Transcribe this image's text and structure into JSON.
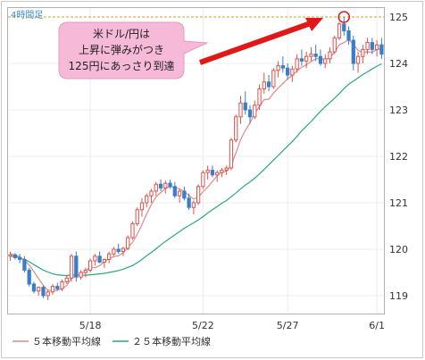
{
  "chart_data": {
    "type": "candlestick",
    "period_label": "4時間足",
    "y_ticks": [
      "125",
      "124",
      "123",
      "122",
      "121",
      "120",
      "119"
    ],
    "ylim": [
      118.5,
      125.3
    ],
    "x_ticks": [
      "5/18",
      "5/22",
      "5/27",
      "6/1"
    ],
    "resistance_level": 125,
    "annotation": [
      "米ドル/円は",
      "上昇に弾みがつき",
      "125円にあっさり到達"
    ],
    "colors": {
      "up": "#d9544d",
      "down": "#3a7dc9",
      "ma5": "#e08a8a",
      "ma25": "#2ca87a",
      "resistance": "#d49a28",
      "annotation_fill": "#f6b9d8",
      "arrow": "#e01818"
    },
    "legend": [
      {
        "label": "５本移動平均線",
        "color": "#e08a8a"
      },
      {
        "label": "２５本移動平均線",
        "color": "#2ca87a"
      }
    ],
    "candles": [
      [
        119.85,
        119.95,
        119.75,
        119.88
      ],
      [
        119.88,
        119.92,
        119.78,
        119.82
      ],
      [
        119.82,
        119.9,
        119.7,
        119.78
      ],
      [
        119.78,
        119.85,
        119.5,
        119.55
      ],
      [
        119.55,
        119.6,
        119.2,
        119.25
      ],
      [
        119.25,
        119.3,
        119.05,
        119.1
      ],
      [
        119.1,
        119.2,
        119.0,
        119.18
      ],
      [
        119.18,
        119.22,
        118.95,
        119.0
      ],
      [
        119.0,
        119.12,
        118.9,
        119.08
      ],
      [
        119.08,
        119.25,
        119.02,
        119.2
      ],
      [
        119.2,
        119.28,
        119.1,
        119.15
      ],
      [
        119.15,
        119.35,
        119.1,
        119.3
      ],
      [
        119.3,
        119.45,
        119.25,
        119.38
      ],
      [
        119.38,
        119.9,
        119.3,
        119.85
      ],
      [
        119.85,
        119.95,
        119.3,
        119.4
      ],
      [
        119.4,
        119.55,
        119.35,
        119.5
      ],
      [
        119.5,
        119.6,
        119.4,
        119.55
      ],
      [
        119.55,
        119.8,
        119.5,
        119.75
      ],
      [
        119.75,
        119.9,
        119.65,
        119.85
      ],
      [
        119.85,
        119.95,
        119.7,
        119.72
      ],
      [
        119.72,
        119.8,
        119.6,
        119.78
      ],
      [
        119.78,
        119.95,
        119.7,
        119.9
      ],
      [
        119.9,
        120.05,
        119.85,
        120.0
      ],
      [
        120.0,
        120.12,
        119.9,
        119.95
      ],
      [
        119.95,
        120.05,
        119.85,
        120.02
      ],
      [
        120.02,
        120.3,
        119.98,
        120.25
      ],
      [
        120.25,
        120.6,
        120.2,
        120.55
      ],
      [
        120.55,
        120.9,
        120.5,
        120.85
      ],
      [
        120.85,
        121.1,
        120.7,
        121.0
      ],
      [
        121.0,
        121.2,
        120.9,
        121.15
      ],
      [
        121.15,
        121.3,
        121.0,
        121.25
      ],
      [
        121.25,
        121.45,
        121.15,
        121.4
      ],
      [
        121.4,
        121.5,
        121.25,
        121.32
      ],
      [
        121.32,
        121.48,
        121.2,
        121.42
      ],
      [
        121.42,
        121.5,
        121.3,
        121.35
      ],
      [
        121.35,
        121.45,
        121.1,
        121.15
      ],
      [
        121.15,
        121.3,
        121.0,
        121.25
      ],
      [
        121.25,
        121.35,
        121.05,
        121.1
      ],
      [
        121.1,
        121.2,
        120.85,
        120.9
      ],
      [
        120.9,
        121.05,
        120.75,
        121.0
      ],
      [
        121.0,
        121.4,
        120.95,
        121.35
      ],
      [
        121.35,
        121.7,
        121.3,
        121.65
      ],
      [
        121.65,
        121.8,
        121.5,
        121.7
      ],
      [
        121.7,
        121.8,
        121.55,
        121.6
      ],
      [
        121.6,
        121.7,
        121.45,
        121.65
      ],
      [
        121.65,
        121.75,
        121.55,
        121.7
      ],
      [
        121.7,
        121.8,
        121.6,
        121.75
      ],
      [
        121.75,
        122.4,
        121.7,
        122.35
      ],
      [
        122.35,
        122.9,
        122.3,
        122.85
      ],
      [
        122.85,
        123.3,
        122.7,
        123.15
      ],
      [
        123.15,
        123.4,
        122.9,
        123.0
      ],
      [
        123.0,
        123.1,
        122.7,
        122.85
      ],
      [
        122.85,
        123.2,
        122.8,
        123.1
      ],
      [
        123.1,
        123.55,
        123.0,
        123.45
      ],
      [
        123.45,
        123.8,
        123.35,
        123.6
      ],
      [
        123.6,
        123.75,
        123.4,
        123.5
      ],
      [
        123.5,
        123.9,
        123.45,
        123.85
      ],
      [
        123.85,
        124.05,
        123.7,
        123.95
      ],
      [
        123.95,
        124.15,
        123.8,
        123.9
      ],
      [
        123.9,
        124.0,
        123.65,
        123.75
      ],
      [
        123.75,
        123.95,
        123.6,
        123.88
      ],
      [
        123.88,
        124.2,
        123.8,
        124.1
      ],
      [
        124.1,
        124.3,
        123.95,
        124.05
      ],
      [
        124.05,
        124.25,
        123.9,
        124.15
      ],
      [
        124.15,
        124.35,
        124.05,
        124.2
      ],
      [
        124.2,
        124.4,
        124.05,
        124.15
      ],
      [
        124.15,
        124.3,
        123.95,
        124.0
      ],
      [
        124.0,
        124.2,
        123.9,
        124.1
      ],
      [
        124.1,
        124.35,
        124.0,
        124.25
      ],
      [
        124.25,
        124.6,
        124.2,
        124.55
      ],
      [
        124.55,
        124.9,
        124.5,
        124.85
      ],
      [
        124.85,
        125.0,
        124.6,
        124.7
      ],
      [
        124.7,
        124.8,
        124.4,
        124.5
      ],
      [
        124.5,
        124.6,
        123.85,
        124.0
      ],
      [
        124.0,
        124.25,
        123.8,
        124.15
      ],
      [
        124.15,
        124.4,
        124.0,
        124.3
      ],
      [
        124.3,
        124.55,
        124.2,
        124.45
      ],
      [
        124.45,
        124.55,
        124.2,
        124.3
      ],
      [
        124.3,
        124.5,
        124.15,
        124.4
      ],
      [
        124.4,
        124.55,
        124.1,
        124.2
      ]
    ],
    "ma5": [
      119.9,
      119.87,
      119.84,
      119.76,
      119.66,
      119.52,
      119.37,
      119.22,
      119.12,
      119.11,
      119.12,
      119.15,
      119.22,
      119.38,
      119.42,
      119.47,
      119.54,
      119.61,
      119.6,
      119.65,
      119.73,
      119.8,
      119.84,
      119.86,
      119.92,
      120.04,
      120.15,
      120.32,
      120.53,
      120.76,
      120.96,
      121.13,
      121.22,
      121.31,
      121.35,
      121.33,
      121.3,
      121.24,
      121.16,
      121.08,
      121.12,
      121.24,
      121.34,
      121.46,
      121.58,
      121.66,
      121.68,
      121.81,
      122.07,
      122.36,
      122.56,
      122.72,
      122.93,
      123.07,
      123.22,
      123.23,
      123.36,
      123.47,
      123.57,
      123.67,
      123.74,
      123.84,
      123.92,
      123.97,
      124.04,
      124.1,
      124.1,
      124.08,
      124.12,
      124.24,
      124.4,
      124.45,
      124.51,
      124.41,
      124.28,
      124.24,
      124.25,
      124.24,
      124.3,
      124.32
    ],
    "ma25": [
      119.85,
      119.84,
      119.82,
      119.78,
      119.73,
      119.67,
      119.61,
      119.55,
      119.51,
      119.47,
      119.45,
      119.44,
      119.43,
      119.45,
      119.44,
      119.44,
      119.44,
      119.45,
      119.46,
      119.47,
      119.48,
      119.5,
      119.52,
      119.54,
      119.57,
      119.61,
      119.65,
      119.71,
      119.78,
      119.86,
      119.93,
      120.01,
      120.09,
      120.17,
      120.24,
      120.31,
      120.38,
      120.45,
      120.51,
      120.57,
      120.63,
      120.7,
      120.78,
      120.85,
      120.92,
      120.99,
      121.05,
      121.13,
      121.21,
      121.3,
      121.38,
      121.45,
      121.53,
      121.62,
      121.72,
      121.82,
      121.92,
      122.02,
      122.12,
      122.22,
      122.32,
      122.43,
      122.55,
      122.65,
      122.75,
      122.86,
      122.97,
      123.07,
      123.16,
      123.25,
      123.35,
      123.46,
      123.55,
      123.62,
      123.69,
      123.76,
      123.82,
      123.88,
      123.94,
      123.99
    ],
    "x_tick_index": [
      17,
      41,
      59,
      78
    ]
  }
}
